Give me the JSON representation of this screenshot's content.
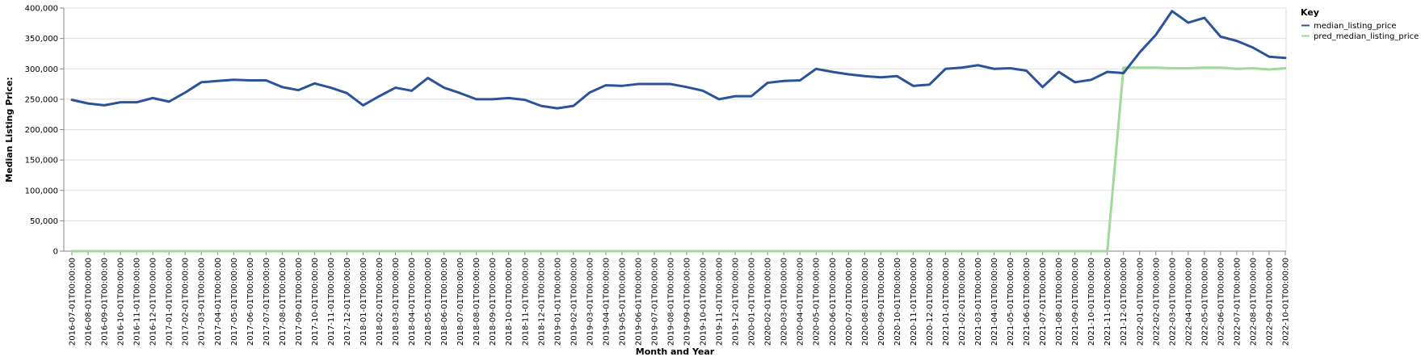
{
  "chart_data": {
    "type": "line",
    "title": "",
    "xlabel": "Month and Year",
    "ylabel": "Median Listing Price:",
    "ylim": [
      0,
      400000
    ],
    "y_ticks": [
      0,
      50000,
      100000,
      150000,
      200000,
      250000,
      300000,
      350000,
      400000
    ],
    "y_tick_labels": [
      "0",
      "50,000",
      "100,000",
      "150,000",
      "200,000",
      "250,000",
      "300,000",
      "350,000",
      "400,000"
    ],
    "grid": true,
    "legend": {
      "title": "Key",
      "placement": "right"
    },
    "x": [
      "2016-07-01T00:00:00",
      "2016-08-01T00:00:00",
      "2016-09-01T00:00:00",
      "2016-10-01T00:00:00",
      "2016-11-01T00:00:00",
      "2016-12-01T00:00:00",
      "2017-01-01T00:00:00",
      "2017-02-01T00:00:00",
      "2017-03-01T00:00:00",
      "2017-04-01T00:00:00",
      "2017-05-01T00:00:00",
      "2017-06-01T00:00:00",
      "2017-07-01T00:00:00",
      "2017-08-01T00:00:00",
      "2017-09-01T00:00:00",
      "2017-10-01T00:00:00",
      "2017-11-01T00:00:00",
      "2017-12-01T00:00:00",
      "2018-01-01T00:00:00",
      "2018-02-01T00:00:00",
      "2018-03-01T00:00:00",
      "2018-04-01T00:00:00",
      "2018-05-01T00:00:00",
      "2018-06-01T00:00:00",
      "2018-07-01T00:00:00",
      "2018-08-01T00:00:00",
      "2018-09-01T00:00:00",
      "2018-10-01T00:00:00",
      "2018-11-01T00:00:00",
      "2018-12-01T00:00:00",
      "2019-01-01T00:00:00",
      "2019-02-01T00:00:00",
      "2019-03-01T00:00:00",
      "2019-04-01T00:00:00",
      "2019-05-01T00:00:00",
      "2019-06-01T00:00:00",
      "2019-07-01T00:00:00",
      "2019-08-01T00:00:00",
      "2019-09-01T00:00:00",
      "2019-10-01T00:00:00",
      "2019-11-01T00:00:00",
      "2019-12-01T00:00:00",
      "2020-01-01T00:00:00",
      "2020-02-01T00:00:00",
      "2020-03-01T00:00:00",
      "2020-04-01T00:00:00",
      "2020-05-01T00:00:00",
      "2020-06-01T00:00:00",
      "2020-07-01T00:00:00",
      "2020-08-01T00:00:00",
      "2020-09-01T00:00:00",
      "2020-10-01T00:00:00",
      "2020-11-01T00:00:00",
      "2020-12-01T00:00:00",
      "2021-01-01T00:00:00",
      "2021-02-01T00:00:00",
      "2021-03-01T00:00:00",
      "2021-04-01T00:00:00",
      "2021-05-01T00:00:00",
      "2021-06-01T00:00:00",
      "2021-07-01T00:00:00",
      "2021-08-01T00:00:00",
      "2021-09-01T00:00:00",
      "2021-10-01T00:00:00",
      "2021-11-01T00:00:00",
      "2021-12-01T00:00:00",
      "2022-01-01T00:00:00",
      "2022-02-01T00:00:00",
      "2022-03-01T00:00:00",
      "2022-04-01T00:00:00",
      "2022-05-01T00:00:00",
      "2022-06-01T00:00:00",
      "2022-07-01T00:00:00",
      "2022-08-01T00:00:00",
      "2022-09-01T00:00:00",
      "2022-10-01T00:00:00"
    ],
    "series": [
      {
        "name": "median_listing_price",
        "color": "#2c5399",
        "values": [
          249000,
          243000,
          240000,
          245000,
          245000,
          252000,
          246000,
          261000,
          278000,
          280000,
          282000,
          281000,
          281000,
          270000,
          265000,
          276000,
          269000,
          260000,
          240000,
          255000,
          269000,
          264000,
          285000,
          269000,
          260000,
          250000,
          250000,
          252000,
          249000,
          239000,
          235000,
          239000,
          261000,
          273000,
          272000,
          275000,
          275000,
          275000,
          270000,
          264000,
          250000,
          255000,
          255000,
          277000,
          280000,
          281000,
          300000,
          295000,
          291000,
          288000,
          286000,
          288000,
          272000,
          274000,
          300000,
          302000,
          306000,
          300000,
          301000,
          297000,
          270000,
          295000,
          278000,
          282000,
          295000,
          293000,
          327000,
          356000,
          395000,
          376000,
          384000,
          353000,
          346000,
          335000,
          320000,
          318000
        ]
      },
      {
        "name": "pred_median_listing_price",
        "color": "#a1d99b",
        "values": [
          0,
          0,
          0,
          0,
          0,
          0,
          0,
          0,
          0,
          0,
          0,
          0,
          0,
          0,
          0,
          0,
          0,
          0,
          0,
          0,
          0,
          0,
          0,
          0,
          0,
          0,
          0,
          0,
          0,
          0,
          0,
          0,
          0,
          0,
          0,
          0,
          0,
          0,
          0,
          0,
          0,
          0,
          0,
          0,
          0,
          0,
          0,
          0,
          0,
          0,
          0,
          0,
          0,
          0,
          0,
          0,
          0,
          0,
          0,
          0,
          0,
          0,
          0,
          0,
          0,
          302000,
          302000,
          302000,
          301000,
          301000,
          302000,
          302000,
          300000,
          301000,
          299000,
          301000
        ]
      }
    ]
  }
}
